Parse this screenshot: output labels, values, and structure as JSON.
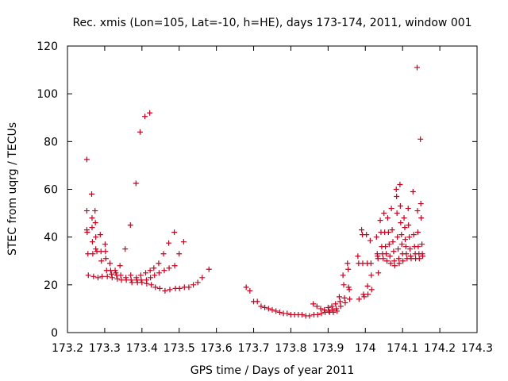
{
  "chart_data": {
    "type": "scatter",
    "title": "Rec. xmis (Lon=105, Lat=-10, h=HE), days 173-174, 2011, window 001",
    "xlabel": "GPS time / Days of year 2011",
    "ylabel": "STEC from uqrg / TECUs",
    "xlim": [
      173.2,
      174.3
    ],
    "ylim": [
      0,
      120
    ],
    "xticks": [
      "173.2",
      "173.3",
      "173.4",
      "173.5",
      "173.6",
      "173.7",
      "173.8",
      "173.9",
      "174",
      "174.1",
      "174.2",
      "174.3"
    ],
    "yticks": [
      "0",
      "20",
      "40",
      "60",
      "80",
      "100",
      "120"
    ],
    "marker": "+",
    "grid": false,
    "colors": {
      "series": "#c8001e"
    },
    "series": [
      {
        "values": [
          [
            173.252,
            72.5
          ],
          [
            173.252,
            51.0
          ],
          [
            173.252,
            43.0
          ],
          [
            173.253,
            42.0
          ],
          [
            173.255,
            33.0
          ],
          [
            173.256,
            24.0
          ],
          [
            173.265,
            58.0
          ],
          [
            173.266,
            48.0
          ],
          [
            173.266,
            44.0
          ],
          [
            173.267,
            38.0
          ],
          [
            173.268,
            33.0
          ],
          [
            173.27,
            23.5
          ],
          [
            173.274,
            51.0
          ],
          [
            173.275,
            46.0
          ],
          [
            173.276,
            40.0
          ],
          [
            173.276,
            35.0
          ],
          [
            173.279,
            34.0
          ],
          [
            173.282,
            23.0
          ],
          [
            173.288,
            41.0
          ],
          [
            173.29,
            34.0
          ],
          [
            173.291,
            30.0
          ],
          [
            173.293,
            23.5
          ],
          [
            173.301,
            37.0
          ],
          [
            173.302,
            34.0
          ],
          [
            173.303,
            31.0
          ],
          [
            173.305,
            26.0
          ],
          [
            173.307,
            23.5
          ],
          [
            173.314,
            29.0
          ],
          [
            173.316,
            26.0
          ],
          [
            173.318,
            24.5
          ],
          [
            173.32,
            23.0
          ],
          [
            173.328,
            26.0
          ],
          [
            173.33,
            25.0
          ],
          [
            173.332,
            24.0
          ],
          [
            173.334,
            22.5
          ],
          [
            173.341,
            28.0
          ],
          [
            173.343,
            24.0
          ],
          [
            173.345,
            22.0
          ],
          [
            173.355,
            35.0
          ],
          [
            173.357,
            23.0
          ],
          [
            173.358,
            22.0
          ],
          [
            173.369,
            45.0
          ],
          [
            173.37,
            24.0
          ],
          [
            173.371,
            22.0
          ],
          [
            173.373,
            21.0
          ],
          [
            173.384,
            62.5
          ],
          [
            173.385,
            23.0
          ],
          [
            173.386,
            22.0
          ],
          [
            173.388,
            21.0
          ],
          [
            173.395,
            84.0
          ],
          [
            173.397,
            24.0
          ],
          [
            173.398,
            22.0
          ],
          [
            173.4,
            21.0
          ],
          [
            173.408,
            90.5
          ],
          [
            173.41,
            25.0
          ],
          [
            173.412,
            22.0
          ],
          [
            173.413,
            20.5
          ],
          [
            173.421,
            92.0
          ],
          [
            173.422,
            26.0
          ],
          [
            173.423,
            23.0
          ],
          [
            173.425,
            20.0
          ],
          [
            173.432,
            27.0
          ],
          [
            173.434,
            24.0
          ],
          [
            173.436,
            19.0
          ],
          [
            173.445,
            29.0
          ],
          [
            173.446,
            25.0
          ],
          [
            173.448,
            18.5
          ],
          [
            173.458,
            33.0
          ],
          [
            173.46,
            26.0
          ],
          [
            173.462,
            17.5
          ],
          [
            173.472,
            37.5
          ],
          [
            173.473,
            27.0
          ],
          [
            173.475,
            18.0
          ],
          [
            173.487,
            42.0
          ],
          [
            173.488,
            28.0
          ],
          [
            173.49,
            18.5
          ],
          [
            173.5,
            33.0
          ],
          [
            173.501,
            18.5
          ],
          [
            173.512,
            38.0
          ],
          [
            173.514,
            19.0
          ],
          [
            173.526,
            19.0
          ],
          [
            173.538,
            20.0
          ],
          [
            173.55,
            21.0
          ],
          [
            173.562,
            23.0
          ],
          [
            173.58,
            26.5
          ],
          [
            173.68,
            19.0
          ],
          [
            173.69,
            17.5
          ],
          [
            173.7,
            13.0
          ],
          [
            173.71,
            13.0
          ],
          [
            173.72,
            11.0
          ],
          [
            173.73,
            10.5
          ],
          [
            173.74,
            10.0
          ],
          [
            173.75,
            9.5
          ],
          [
            173.76,
            9.0
          ],
          [
            173.77,
            8.5
          ],
          [
            173.78,
            8.0
          ],
          [
            173.79,
            8.0
          ],
          [
            173.8,
            7.5
          ],
          [
            173.81,
            7.5
          ],
          [
            173.82,
            7.5
          ],
          [
            173.83,
            7.5
          ],
          [
            173.84,
            7.0
          ],
          [
            173.85,
            7.0
          ],
          [
            173.86,
            12.0
          ],
          [
            173.862,
            7.5
          ],
          [
            173.87,
            11.0
          ],
          [
            173.872,
            7.5
          ],
          [
            173.88,
            10.0
          ],
          [
            173.882,
            8.0
          ],
          [
            173.89,
            9.5
          ],
          [
            173.892,
            8.5
          ],
          [
            173.9,
            10.5
          ],
          [
            173.902,
            9.0
          ],
          [
            173.904,
            8.5
          ],
          [
            173.91,
            11.0
          ],
          [
            173.912,
            9.5
          ],
          [
            173.914,
            8.5
          ],
          [
            173.92,
            12.0
          ],
          [
            173.922,
            10.0
          ],
          [
            173.924,
            9.0
          ],
          [
            173.93,
            15.0
          ],
          [
            173.932,
            13.0
          ],
          [
            173.934,
            11.0
          ],
          [
            173.94,
            24.0
          ],
          [
            173.942,
            20.0
          ],
          [
            173.944,
            14.5
          ],
          [
            173.946,
            12.5
          ],
          [
            173.952,
            29.0
          ],
          [
            173.954,
            26.5
          ],
          [
            173.955,
            19.0
          ],
          [
            173.957,
            18.0
          ],
          [
            173.958,
            14.0
          ],
          [
            173.98,
            32.0
          ],
          [
            173.982,
            29.0
          ],
          [
            173.983,
            14.0
          ],
          [
            173.99,
            43.0
          ],
          [
            173.992,
            41.0
          ],
          [
            173.993,
            29.0
          ],
          [
            173.995,
            16.0
          ],
          [
            173.997,
            15.0
          ],
          [
            174.003,
            41.0
          ],
          [
            174.005,
            29.0
          ],
          [
            174.006,
            19.5
          ],
          [
            174.007,
            16.0
          ],
          [
            174.013,
            38.5
          ],
          [
            174.015,
            29.0
          ],
          [
            174.016,
            24.0
          ],
          [
            174.017,
            18.0
          ],
          [
            174.03,
            40.0
          ],
          [
            174.032,
            33.0
          ],
          [
            174.033,
            32.0
          ],
          [
            174.034,
            31.0
          ],
          [
            174.035,
            25.0
          ],
          [
            174.04,
            47.0
          ],
          [
            174.042,
            42.0
          ],
          [
            174.044,
            36.0
          ],
          [
            174.046,
            33.0
          ],
          [
            174.048,
            31.0
          ],
          [
            174.05,
            50.0
          ],
          [
            174.052,
            42.0
          ],
          [
            174.054,
            36.0
          ],
          [
            174.056,
            33.0
          ],
          [
            174.058,
            30.0
          ],
          [
            174.06,
            48.0
          ],
          [
            174.062,
            42.0
          ],
          [
            174.064,
            37.0
          ],
          [
            174.066,
            32.0
          ],
          [
            174.068,
            29.0
          ],
          [
            174.07,
            52.0
          ],
          [
            174.072,
            43.0
          ],
          [
            174.074,
            38.0
          ],
          [
            174.076,
            34.0
          ],
          [
            174.078,
            30.0
          ],
          [
            174.079,
            28.0
          ],
          [
            174.083,
            60.0
          ],
          [
            174.084,
            57.0
          ],
          [
            174.085,
            50.0
          ],
          [
            174.086,
            40.0
          ],
          [
            174.088,
            35.0
          ],
          [
            174.09,
            31.0
          ],
          [
            174.091,
            29.0
          ],
          [
            174.093,
            62.0
          ],
          [
            174.094,
            53.0
          ],
          [
            174.095,
            46.0
          ],
          [
            174.097,
            41.0
          ],
          [
            174.098,
            37.0
          ],
          [
            174.1,
            33.0
          ],
          [
            174.101,
            30.0
          ],
          [
            174.104,
            48.0
          ],
          [
            174.106,
            44.0
          ],
          [
            174.107,
            39.0
          ],
          [
            174.109,
            36.0
          ],
          [
            174.11,
            33.0
          ],
          [
            174.112,
            31.0
          ],
          [
            174.115,
            52.0
          ],
          [
            174.116,
            45.0
          ],
          [
            174.118,
            40.0
          ],
          [
            174.12,
            35.0
          ],
          [
            174.122,
            32.0
          ],
          [
            174.123,
            31.0
          ],
          [
            174.128,
            59.0
          ],
          [
            174.13,
            41.0
          ],
          [
            174.132,
            36.0
          ],
          [
            174.134,
            33.0
          ],
          [
            174.135,
            31.0
          ],
          [
            174.139,
            111.0
          ],
          [
            174.14,
            51.0
          ],
          [
            174.141,
            42.0
          ],
          [
            174.142,
            36.0
          ],
          [
            174.144,
            33.0
          ],
          [
            174.145,
            31.0
          ],
          [
            174.148,
            81.0
          ],
          [
            174.149,
            54.0
          ],
          [
            174.15,
            48.0
          ],
          [
            174.152,
            37.0
          ],
          [
            174.153,
            33.0
          ],
          [
            174.154,
            32.0
          ]
        ]
      }
    ]
  }
}
